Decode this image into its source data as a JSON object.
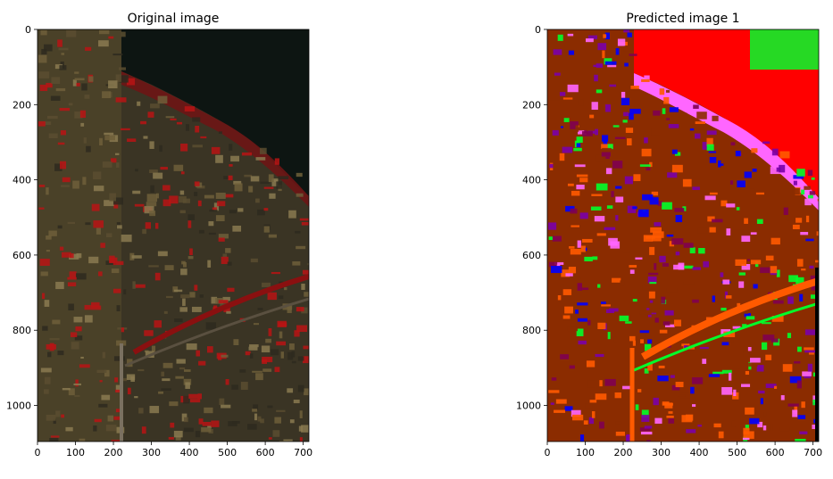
{
  "colors": {
    "photo_dark": "#2e2a1e",
    "photo_tan": "#6e5f3a",
    "photo_red": "#b81414",
    "river_dark": "#0d1512",
    "pred_brown": "#8b2c00",
    "pred_orange": "#ff5a00",
    "pred_red": "#ff0000",
    "pred_green": "#00ff2a",
    "pred_blue": "#0000ff",
    "pred_purple": "#7a00a8",
    "pred_pink": "#ff66ff",
    "pred_maroon": "#800050"
  },
  "chart_data": [
    {
      "type": "image",
      "title": "Original image",
      "xlim": [
        0,
        715
      ],
      "ylim": [
        1096,
        0
      ],
      "xticks": [
        0,
        100,
        200,
        300,
        400,
        500,
        600,
        700
      ],
      "yticks": [
        0,
        200,
        400,
        600,
        800,
        1000
      ],
      "xlabel": "",
      "ylabel": ""
    },
    {
      "type": "image",
      "title": "Predicted image 1",
      "xlim": [
        0,
        715
      ],
      "ylim": [
        1096,
        0
      ],
      "xticks": [
        0,
        100,
        200,
        300,
        400,
        500,
        600,
        700
      ],
      "yticks": [
        0,
        200,
        400,
        600,
        800,
        1000
      ],
      "xlabel": "",
      "ylabel": ""
    }
  ]
}
